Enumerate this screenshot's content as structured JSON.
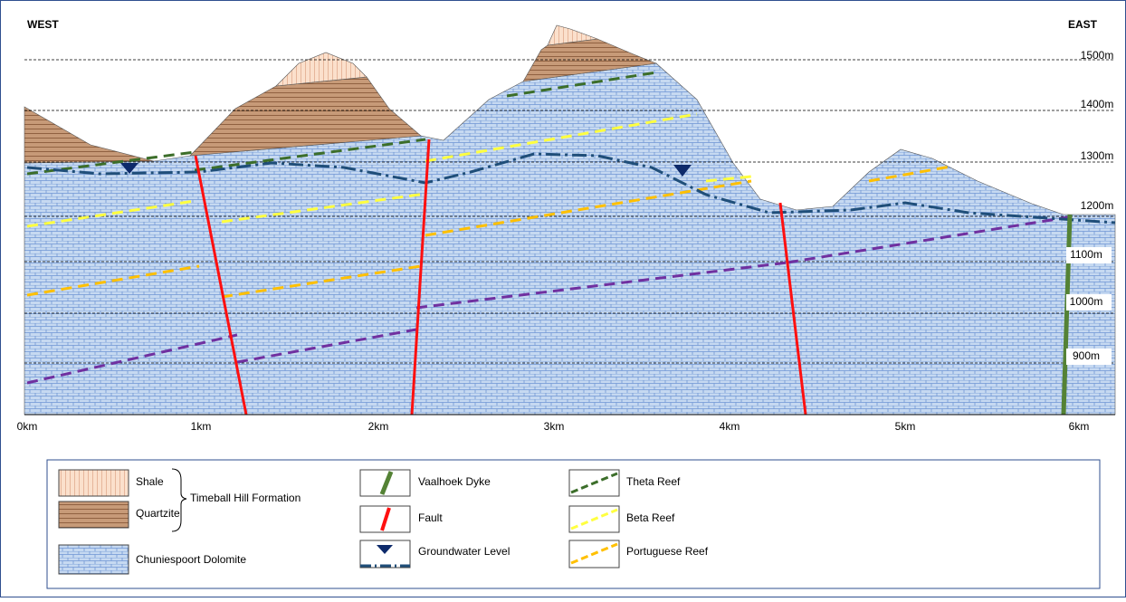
{
  "labels": {
    "west": "WEST",
    "east": "EAST"
  },
  "elevations": [
    "1500m",
    "1400m",
    "1300m",
    "1200m",
    "1100m",
    "1000m",
    "900m"
  ],
  "distances": [
    "0km",
    "1km",
    "2km",
    "3km",
    "4km",
    "5km",
    "6km"
  ],
  "legend": {
    "shale": "Shale",
    "quartzite": "Quartzite",
    "formation": "Timeball Hill Formation",
    "dolomite": "Chuniespoort Dolomite",
    "dyke": "Vaalhoek Dyke",
    "fault": "Fault",
    "groundwater": "Groundwater Level",
    "theta": "Theta Reef",
    "beta": "Beta Reef",
    "portuguese": "Portuguese Reef"
  }
}
